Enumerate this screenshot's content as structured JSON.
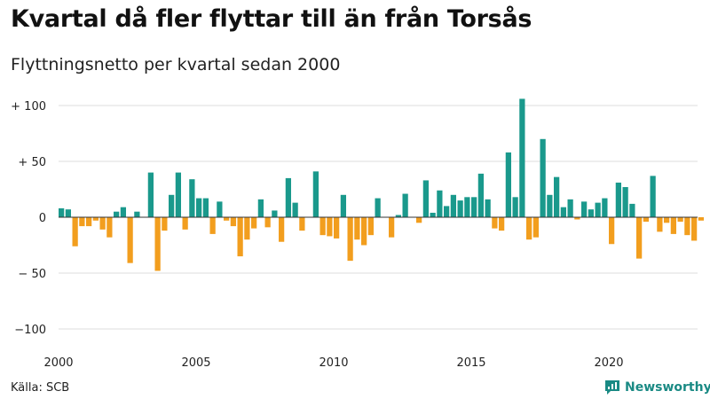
{
  "title": "Kvartal då fler flyttar till än från Torsås",
  "subtitle": "Flyttningsnetto per kvartal sedan 2000",
  "source": "Källa: SCB",
  "brand": "Newsworthy",
  "colors": {
    "positive": "#1a998c",
    "negative": "#f29e1e",
    "zero_line": "#333333",
    "grid": "#dddddd"
  },
  "chart_data": {
    "type": "bar",
    "x_start_year": 2000,
    "periods_per_year": 4,
    "ylim": [
      -100,
      110
    ],
    "y_ticks": [
      {
        "value": 100,
        "label": "+ 100"
      },
      {
        "value": 50,
        "label": "+  50"
      },
      {
        "value": 0,
        "label": "0"
      },
      {
        "value": -50,
        "label": "− 50"
      },
      {
        "value": -100,
        "label": "−100"
      }
    ],
    "x_ticks": [
      {
        "year": 2000,
        "label": "2000"
      },
      {
        "year": 2005,
        "label": "2005"
      },
      {
        "year": 2010,
        "label": "2010"
      },
      {
        "year": 2015,
        "label": "2015"
      },
      {
        "year": 2020,
        "label": "2020"
      }
    ],
    "grid": true,
    "values": [
      8,
      7,
      -26,
      -8,
      -8,
      -3,
      -11,
      -18,
      5,
      9,
      -41,
      5,
      0,
      40,
      -48,
      -12,
      20,
      40,
      -11,
      34,
      17,
      17,
      -15,
      14,
      -3,
      -8,
      -35,
      -20,
      -10,
      16,
      -9,
      6,
      -22,
      35,
      13,
      -12,
      0,
      41,
      -16,
      -17,
      -19,
      20,
      -39,
      -20,
      -25,
      -16,
      17,
      0,
      -18,
      2,
      21,
      0,
      -5,
      33,
      4,
      24,
      10,
      20,
      15,
      18,
      18,
      39,
      16,
      -10,
      -12,
      58,
      18,
      106,
      -20,
      -18,
      70,
      20,
      36,
      9,
      16,
      -2,
      14,
      7,
      13,
      17,
      -24,
      31,
      27,
      12,
      -37,
      -4,
      37,
      -13,
      -5,
      -15,
      -4,
      -16,
      -21,
      -3
    ]
  }
}
